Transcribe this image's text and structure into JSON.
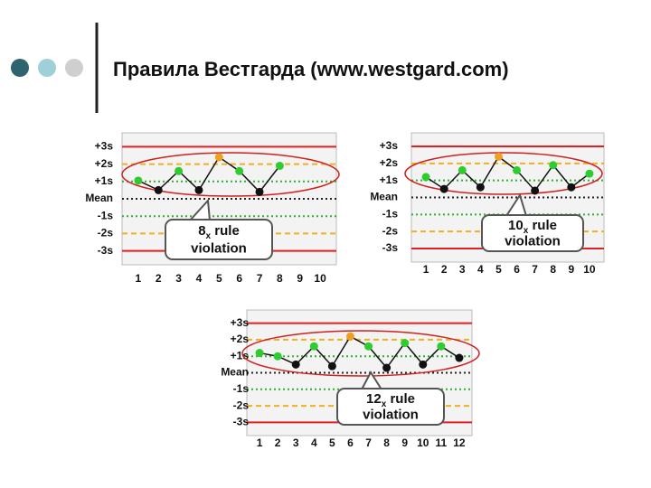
{
  "title": "Правила Вестгарда (www.westgard.com)",
  "chart_data": [
    {
      "type": "line",
      "x": [
        1,
        2,
        3,
        4,
        5,
        6,
        7,
        8
      ],
      "values": [
        1.05,
        0.5,
        1.6,
        0.5,
        2.4,
        1.6,
        0.4,
        1.9
      ],
      "point_colors": [
        "#2ecc2e",
        "#111111",
        "#2ecc2e",
        "#111111",
        "#f0a020",
        "#2ecc2e",
        "#111111",
        "#2ecc2e"
      ],
      "xlim": [
        0.2,
        10.8
      ],
      "xticks": [
        1,
        2,
        3,
        4,
        5,
        6,
        7,
        8,
        9,
        10
      ],
      "ylim": [
        -3.8,
        3.8
      ],
      "yticks": [
        {
          "value": 3,
          "label": "+3s"
        },
        {
          "value": 2,
          "label": "+2s"
        },
        {
          "value": 1,
          "label": "+1s"
        },
        {
          "value": 0,
          "label": "Mean"
        },
        {
          "value": -1,
          "label": "-1s"
        },
        {
          "value": -2,
          "label": "-2s"
        },
        {
          "value": -3,
          "label": "-3s"
        }
      ],
      "grid_colors": [
        "#e02020",
        "#f0b020",
        "#30b030",
        "#222222",
        "#30b030",
        "#f0b020",
        "#e02020"
      ],
      "grid_dash": [
        "none",
        "6,4",
        "2,3",
        "2,3",
        "2,3",
        "6,4",
        "none"
      ],
      "line_color": "#111111",
      "annotation": {
        "number": "8",
        "sub": "x",
        "rest": " rule",
        "line2": "violation"
      }
    },
    {
      "type": "line",
      "x": [
        1,
        2,
        3,
        4,
        5,
        6,
        7,
        8,
        9,
        10
      ],
      "values": [
        1.2,
        0.5,
        1.6,
        0.6,
        2.4,
        1.6,
        0.4,
        1.9,
        0.6,
        1.4
      ],
      "point_colors": [
        "#2ecc2e",
        "#111111",
        "#2ecc2e",
        "#111111",
        "#f0a020",
        "#2ecc2e",
        "#111111",
        "#2ecc2e",
        "#111111",
        "#2ecc2e"
      ],
      "xlim": [
        0.2,
        10.8
      ],
      "xticks": [
        1,
        2,
        3,
        4,
        5,
        6,
        7,
        8,
        9,
        10
      ],
      "ylim": [
        -3.8,
        3.8
      ],
      "yticks": [
        {
          "value": 3,
          "label": "+3s"
        },
        {
          "value": 2,
          "label": "+2s"
        },
        {
          "value": 1,
          "label": "+1s"
        },
        {
          "value": 0,
          "label": "Mean"
        },
        {
          "value": -1,
          "label": "-1s"
        },
        {
          "value": -2,
          "label": "-2s"
        },
        {
          "value": -3,
          "label": "-3s"
        }
      ],
      "grid_colors": [
        "#e02020",
        "#f0b020",
        "#30b030",
        "#222222",
        "#30b030",
        "#f0b020",
        "#e02020"
      ],
      "grid_dash": [
        "none",
        "6,4",
        "2,3",
        "2,3",
        "2,3",
        "6,4",
        "none"
      ],
      "line_color": "#111111",
      "annotation": {
        "number": "10",
        "sub": "x",
        "rest": " rule",
        "line2": "violation"
      }
    },
    {
      "type": "line",
      "x": [
        1,
        2,
        3,
        4,
        5,
        6,
        7,
        8,
        9,
        10,
        11,
        12
      ],
      "values": [
        1.2,
        1.0,
        0.5,
        1.6,
        0.4,
        2.2,
        1.6,
        0.3,
        1.8,
        0.5,
        1.6,
        0.9
      ],
      "point_colors": [
        "#2ecc2e",
        "#2ecc2e",
        "#111111",
        "#2ecc2e",
        "#111111",
        "#f0a020",
        "#2ecc2e",
        "#111111",
        "#2ecc2e",
        "#111111",
        "#2ecc2e",
        "#111111"
      ],
      "xlim": [
        0.3,
        12.7
      ],
      "xticks": [
        1,
        2,
        3,
        4,
        5,
        6,
        7,
        8,
        9,
        10,
        11,
        12
      ],
      "ylim": [
        -3.8,
        3.8
      ],
      "yticks": [
        {
          "value": 3,
          "label": "+3s"
        },
        {
          "value": 2,
          "label": "+2s"
        },
        {
          "value": 1,
          "label": "+1s"
        },
        {
          "value": 0,
          "label": "Mean"
        },
        {
          "value": -1,
          "label": "-1s"
        },
        {
          "value": -2,
          "label": "-2s"
        },
        {
          "value": -3,
          "label": "-3s"
        }
      ],
      "grid_colors": [
        "#e02020",
        "#f0b020",
        "#30b030",
        "#222222",
        "#30b030",
        "#f0b020",
        "#e02020"
      ],
      "grid_dash": [
        "none",
        "6,4",
        "2,3",
        "2,3",
        "2,3",
        "6,4",
        "none"
      ],
      "line_color": "#111111",
      "annotation": {
        "number": "12",
        "sub": "x",
        "rest": " rule",
        "line2": "violation"
      }
    }
  ]
}
